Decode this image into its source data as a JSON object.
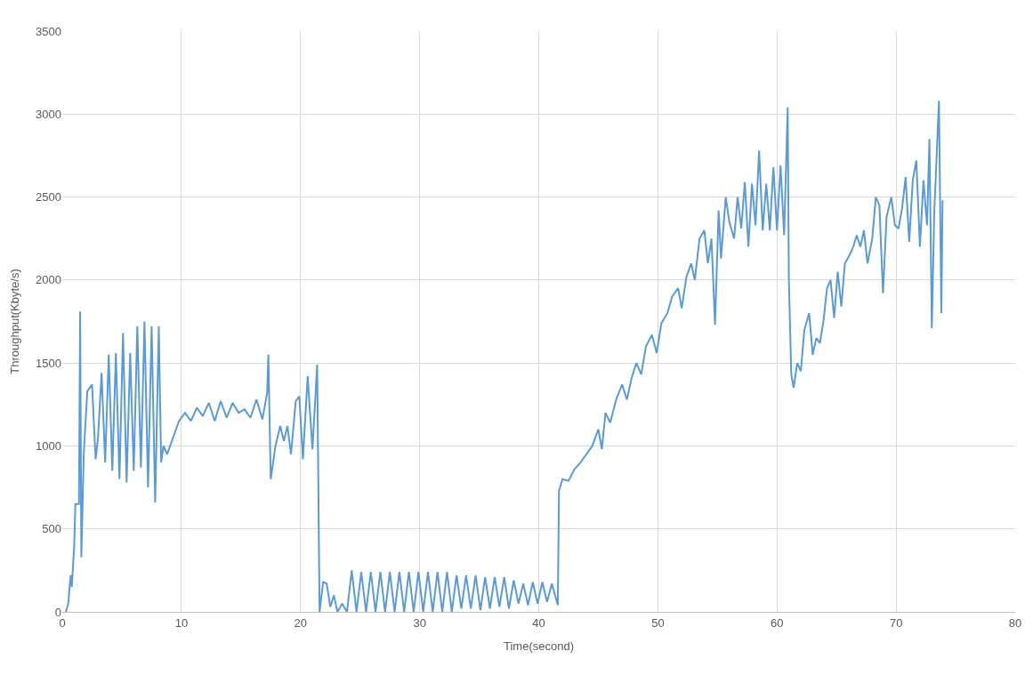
{
  "chart_data": {
    "type": "line",
    "xlabel": "Time(second)",
    "ylabel": "Throughput(Kbyte/s)",
    "xlim": [
      0,
      80
    ],
    "xticks": [
      0,
      10,
      20,
      30,
      40,
      50,
      60,
      70,
      80
    ],
    "ylim": [
      0,
      3500
    ],
    "yticks": [
      0,
      500,
      1000,
      1500,
      2000,
      2500,
      3000,
      3500
    ],
    "grid": true,
    "marker": "none",
    "line_style": "solid",
    "series": [
      {
        "color": "#5b9bd5",
        "x": [
          0.3,
          0.5,
          0.7,
          0.8,
          1.0,
          1.1,
          1.4,
          1.5,
          1.6,
          1.8,
          2.1,
          2.5,
          2.8,
          3.0,
          3.3,
          3.6,
          3.9,
          4.2,
          4.5,
          4.8,
          5.1,
          5.4,
          5.7,
          6.0,
          6.3,
          6.6,
          6.9,
          7.2,
          7.5,
          7.8,
          8.1,
          8.3,
          8.5,
          8.8,
          9.3,
          9.8,
          10.3,
          10.8,
          11.3,
          11.8,
          12.3,
          12.8,
          13.3,
          13.8,
          14.3,
          14.8,
          15.3,
          15.8,
          16.3,
          16.8,
          17.2,
          17.3,
          17.5,
          17.9,
          18.3,
          18.6,
          18.9,
          19.2,
          19.6,
          19.9,
          20.2,
          20.6,
          21.0,
          21.4,
          21.6,
          21.9,
          22.2,
          22.5,
          22.8,
          23.1,
          23.5,
          23.9,
          24.3,
          24.7,
          25.1,
          25.5,
          25.9,
          26.3,
          26.7,
          27.1,
          27.5,
          27.9,
          28.3,
          28.7,
          29.1,
          29.5,
          29.9,
          30.3,
          30.7,
          31.1,
          31.5,
          31.9,
          32.3,
          32.7,
          33.1,
          33.5,
          33.9,
          34.3,
          34.7,
          35.1,
          35.5,
          35.9,
          36.3,
          36.7,
          37.1,
          37.5,
          37.9,
          38.3,
          38.7,
          39.1,
          39.5,
          39.9,
          40.3,
          40.7,
          41.1,
          41.6,
          41.7,
          42.0,
          42.5,
          43.0,
          43.5,
          44.0,
          44.5,
          45.0,
          45.3,
          45.6,
          46.0,
          46.5,
          47.0,
          47.4,
          47.8,
          48.2,
          48.6,
          49.0,
          49.5,
          49.9,
          50.3,
          50.8,
          51.2,
          51.7,
          52.0,
          52.4,
          52.8,
          53.1,
          53.5,
          53.9,
          54.2,
          54.5,
          54.8,
          55.1,
          55.3,
          55.7,
          56.0,
          56.4,
          56.7,
          57.0,
          57.3,
          57.6,
          57.9,
          58.2,
          58.5,
          58.8,
          59.1,
          59.4,
          59.7,
          60.0,
          60.3,
          60.6,
          60.9,
          61.0,
          61.2,
          61.4,
          61.7,
          62.0,
          62.3,
          62.7,
          63.0,
          63.3,
          63.6,
          63.9,
          64.2,
          64.5,
          64.8,
          65.1,
          65.4,
          65.7,
          66.1,
          66.4,
          66.7,
          67.0,
          67.3,
          67.6,
          68.0,
          68.3,
          68.6,
          68.9,
          69.2,
          69.6,
          69.9,
          70.2,
          70.5,
          70.8,
          71.1,
          71.4,
          71.7,
          72.0,
          72.3,
          72.6,
          72.8,
          73.0,
          73.2,
          73.6,
          73.8,
          73.9
        ],
        "values": [
          0,
          50,
          220,
          150,
          400,
          650,
          650,
          1810,
          330,
          950,
          1330,
          1370,
          920,
          1050,
          1440,
          900,
          1550,
          850,
          1560,
          800,
          1680,
          780,
          1560,
          850,
          1720,
          870,
          1750,
          750,
          1720,
          660,
          1720,
          900,
          1000,
          950,
          1050,
          1150,
          1200,
          1150,
          1230,
          1180,
          1260,
          1150,
          1270,
          1170,
          1260,
          1200,
          1220,
          1170,
          1280,
          1160,
          1320,
          1550,
          800,
          1000,
          1120,
          1030,
          1120,
          950,
          1270,
          1300,
          920,
          1420,
          980,
          1490,
          0,
          180,
          170,
          30,
          100,
          0,
          50,
          0,
          250,
          0,
          240,
          0,
          240,
          0,
          240,
          0,
          240,
          0,
          240,
          0,
          240,
          0,
          240,
          0,
          240,
          0,
          240,
          0,
          240,
          0,
          220,
          20,
          220,
          20,
          220,
          10,
          210,
          20,
          210,
          30,
          210,
          20,
          190,
          50,
          170,
          40,
          180,
          50,
          180,
          60,
          170,
          40,
          730,
          800,
          790,
          860,
          900,
          950,
          1000,
          1100,
          980,
          1200,
          1140,
          1280,
          1370,
          1280,
          1410,
          1500,
          1430,
          1600,
          1670,
          1560,
          1740,
          1800,
          1900,
          1950,
          1830,
          2020,
          2100,
          2000,
          2250,
          2300,
          2100,
          2250,
          1730,
          2420,
          2130,
          2500,
          2350,
          2250,
          2500,
          2310,
          2590,
          2200,
          2580,
          2330,
          2780,
          2300,
          2580,
          2300,
          2680,
          2300,
          2690,
          2270,
          3040,
          2000,
          1430,
          1350,
          1500,
          1450,
          1700,
          1800,
          1550,
          1650,
          1620,
          1750,
          1950,
          2000,
          1770,
          2050,
          1840,
          2100,
          2150,
          2200,
          2270,
          2200,
          2300,
          2100,
          2250,
          2500,
          2450,
          1920,
          2380,
          2500,
          2330,
          2310,
          2430,
          2620,
          2230,
          2600,
          2720,
          2200,
          2600,
          2330,
          2850,
          1710,
          2400,
          3080,
          1800,
          2480
        ]
      }
    ]
  }
}
